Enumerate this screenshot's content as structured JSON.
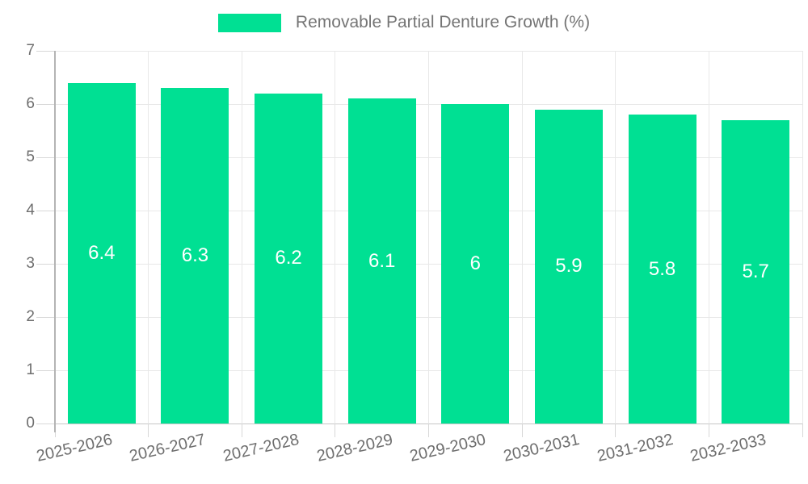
{
  "legend": {
    "label": "Removable Partial Denture Growth (%)"
  },
  "colors": {
    "bar": "#00e093",
    "value_label": "#ffffff",
    "axis_text": "#6e6e6e",
    "legend_text": "#757575",
    "gridline": "#e8e8e8",
    "axis_line": "#b4b4b4",
    "baseline": "#c6c6c6"
  },
  "chart_data": {
    "type": "bar",
    "title": "Removable Partial Denture Growth (%)",
    "categories": [
      "2025-2026",
      "2026-2027",
      "2027-2028",
      "2028-2029",
      "2029-2030",
      "2030-2031",
      "2031-2032",
      "2032-2033"
    ],
    "series": [
      {
        "name": "Removable Partial Denture Growth (%)",
        "values": [
          6.4,
          6.3,
          6.2,
          6.1,
          6,
          5.9,
          5.8,
          5.7
        ],
        "value_labels": [
          "6.4",
          "6.3",
          "6.2",
          "6.1",
          "6",
          "5.9",
          "5.8",
          "5.7"
        ]
      }
    ],
    "xlabel": "",
    "ylabel": "",
    "ylim": [
      0,
      7
    ],
    "yticks": [
      0,
      1,
      2,
      3,
      4,
      5,
      6,
      7
    ],
    "grid": true,
    "legend_position": "top",
    "value_labels_inside_bars": true,
    "x_label_rotation_deg": -13
  }
}
